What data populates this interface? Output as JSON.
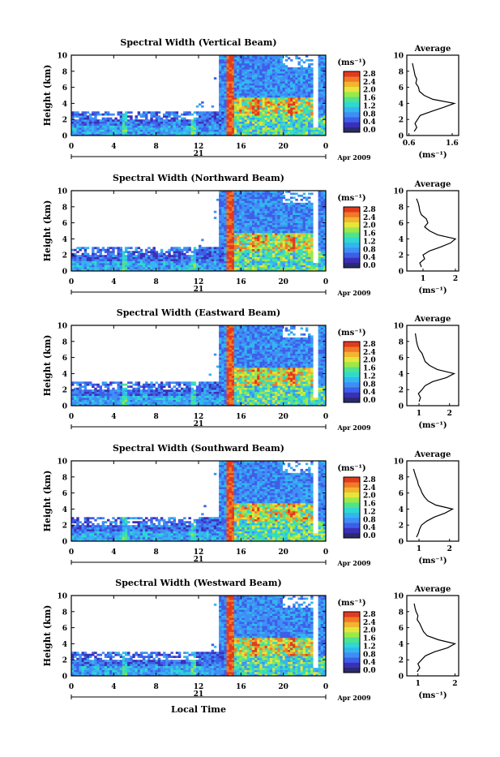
{
  "chart_data": [
    {
      "type": "heatmap",
      "title": "Spectral Width (Vertical Beam)",
      "ylabel": "Height (km)",
      "ylim": [
        0,
        10
      ],
      "y_ticks": [
        "0",
        "2",
        "4",
        "6",
        "8",
        "10"
      ],
      "x_ticks": [
        "0",
        "4",
        "8",
        "12",
        "16",
        "20",
        "0"
      ],
      "xlim_hours": [
        0,
        24
      ],
      "day_label": "21",
      "month_label": "Apr 2009",
      "colorbar_unit": "(ms⁻¹)",
      "colorbar_ticks": [
        "0.0",
        "0.4",
        "0.8",
        "1.2",
        "1.6",
        "2.0",
        "2.4",
        "2.8"
      ],
      "colorbar_range": [
        0,
        2.8
      ],
      "profile": {
        "title": "Average",
        "xlabel": "(ms⁻¹)",
        "xticks": [
          0.6,
          1.6
        ],
        "xtick_labels": [
          "0.6",
          "1.6"
        ],
        "xlim": [
          0.55,
          1.75
        ],
        "heights": [
          0.5,
          1,
          1.5,
          2,
          2.5,
          3,
          3.5,
          4,
          4.5,
          5,
          5.5,
          6,
          6.5,
          7,
          7.5,
          8,
          8.5,
          9
        ],
        "values": [
          0.72,
          0.78,
          0.74,
          0.8,
          0.86,
          1.12,
          1.4,
          1.65,
          1.15,
          0.95,
          0.84,
          0.82,
          0.76,
          0.78,
          0.74,
          0.72,
          0.7,
          0.68
        ]
      }
    },
    {
      "type": "heatmap",
      "title": "Spectral Width (Northward Beam)",
      "ylabel": "Height (km)",
      "ylim": [
        0,
        10
      ],
      "y_ticks": [
        "0",
        "2",
        "4",
        "6",
        "8",
        "10"
      ],
      "x_ticks": [
        "0",
        "4",
        "8",
        "12",
        "16",
        "20",
        "0"
      ],
      "xlim_hours": [
        0,
        24
      ],
      "day_label": "21",
      "month_label": "Apr 2009",
      "colorbar_unit": "(ms⁻¹)",
      "colorbar_ticks": [
        "0.0",
        "0.4",
        "0.8",
        "1.2",
        "1.6",
        "2.0",
        "2.4",
        "2.8"
      ],
      "colorbar_range": [
        0,
        2.8
      ],
      "profile": {
        "title": "Average",
        "xlabel": "(ms⁻¹)",
        "xticks": [
          1,
          2
        ],
        "xtick_labels": [
          "1",
          "2"
        ],
        "xlim": [
          0.5,
          2.1
        ],
        "heights": [
          0.5,
          1,
          1.5,
          2,
          2.5,
          3,
          3.5,
          4,
          4.5,
          5,
          5.5,
          6,
          6.5,
          7,
          7.5,
          8,
          8.5,
          9
        ],
        "values": [
          0.95,
          0.9,
          1.05,
          1.0,
          1.2,
          1.55,
          1.85,
          2.0,
          1.45,
          1.2,
          1.05,
          1.15,
          1.1,
          0.95,
          0.9,
          0.88,
          0.85,
          0.8
        ]
      }
    },
    {
      "type": "heatmap",
      "title": "Spectral Width (Eastward Beam)",
      "ylabel": "Height (km)",
      "ylim": [
        0,
        10
      ],
      "y_ticks": [
        "0",
        "2",
        "4",
        "6",
        "8",
        "10"
      ],
      "x_ticks": [
        "0",
        "4",
        "8",
        "12",
        "16",
        "20",
        "0"
      ],
      "xlim_hours": [
        0,
        24
      ],
      "day_label": "21",
      "month_label": "Apr 2009",
      "colorbar_unit": "(ms⁻¹)",
      "colorbar_ticks": [
        "0.0",
        "0.4",
        "0.8",
        "1.2",
        "1.6",
        "2.0",
        "2.4",
        "2.8"
      ],
      "colorbar_range": [
        0,
        2.8
      ],
      "profile": {
        "title": "Average",
        "xlabel": "(ms⁻¹)",
        "xticks": [
          1,
          2
        ],
        "xtick_labels": [
          "1",
          "2"
        ],
        "xlim": [
          0.6,
          2.3
        ],
        "heights": [
          0.5,
          1,
          1.5,
          2,
          2.5,
          3,
          3.5,
          4,
          4.5,
          5,
          5.5,
          6,
          6.5,
          7,
          7.5,
          8,
          8.5,
          9
        ],
        "values": [
          1.0,
          1.05,
          0.98,
          1.1,
          1.2,
          1.45,
          1.9,
          2.15,
          1.6,
          1.35,
          1.2,
          1.15,
          1.1,
          1.0,
          0.95,
          0.92,
          0.9,
          0.88
        ]
      }
    },
    {
      "type": "heatmap",
      "title": "Spectral Width (Southward Beam)",
      "ylabel": "Height (km)",
      "ylim": [
        0,
        10
      ],
      "y_ticks": [
        "0",
        "2",
        "4",
        "6",
        "8",
        "10"
      ],
      "x_ticks": [
        "0",
        "4",
        "8",
        "12",
        "16",
        "20",
        "0"
      ],
      "xlim_hours": [
        0,
        24
      ],
      "day_label": "21",
      "month_label": "Apr 2009",
      "colorbar_unit": "(ms⁻¹)",
      "colorbar_ticks": [
        "0.0",
        "0.4",
        "0.8",
        "1.2",
        "1.6",
        "2.0",
        "2.4",
        "2.8"
      ],
      "colorbar_range": [
        0,
        2.8
      ],
      "profile": {
        "title": "Average",
        "xlabel": "(ms⁻¹)",
        "xticks": [
          1,
          2
        ],
        "xtick_labels": [
          "1",
          "2"
        ],
        "xlim": [
          0.6,
          2.3
        ],
        "heights": [
          0.5,
          1,
          1.5,
          2,
          2.5,
          3,
          3.5,
          4,
          4.5,
          5,
          5.5,
          6,
          6.5,
          7,
          7.5,
          8,
          8.5,
          9
        ],
        "values": [
          0.92,
          0.98,
          1.02,
          1.08,
          1.25,
          1.5,
          1.85,
          2.1,
          1.55,
          1.3,
          1.18,
          1.1,
          1.05,
          0.98,
          0.95,
          0.9,
          0.86,
          0.82
        ]
      }
    },
    {
      "type": "heatmap",
      "title": "Spectral Width (Westward Beam)",
      "ylabel": "Height (km)",
      "xlabel": "Local Time",
      "ylim": [
        0,
        10
      ],
      "y_ticks": [
        "0",
        "2",
        "4",
        "6",
        "8",
        "10"
      ],
      "x_ticks": [
        "0",
        "4",
        "8",
        "12",
        "16",
        "20",
        "0"
      ],
      "xlim_hours": [
        0,
        24
      ],
      "day_label": "21",
      "month_label": "Apr 2009",
      "colorbar_unit": "(ms⁻¹)",
      "colorbar_ticks": [
        "0.0",
        "0.4",
        "0.8",
        "1.2",
        "1.6",
        "2.0",
        "2.4",
        "2.8"
      ],
      "colorbar_range": [
        0,
        2.8
      ],
      "profile": {
        "title": "Average",
        "xlabel": "(ms⁻¹)",
        "xticks": [
          1,
          2
        ],
        "xtick_labels": [
          "1",
          "2"
        ],
        "xlim": [
          0.7,
          2.1
        ],
        "heights": [
          0.5,
          1,
          1.5,
          2,
          2.5,
          3,
          3.5,
          4,
          4.5,
          5,
          5.5,
          6,
          6.5,
          7,
          7.5,
          8,
          8.5,
          9
        ],
        "values": [
          0.98,
          1.05,
          1.0,
          1.1,
          1.2,
          1.45,
          1.8,
          2.0,
          1.55,
          1.25,
          1.15,
          1.1,
          1.05,
          0.98,
          1.0,
          0.95,
          0.92,
          0.9
        ]
      }
    }
  ],
  "colors": {
    "colormap": [
      "#2a2a6e",
      "#3b2fb8",
      "#3d5ee8",
      "#3f8ef5",
      "#33b6f0",
      "#2fd8d0",
      "#4fe38c",
      "#9be84a",
      "#e6e63a",
      "#f2b530",
      "#f07a26",
      "#e23a1f"
    ]
  }
}
